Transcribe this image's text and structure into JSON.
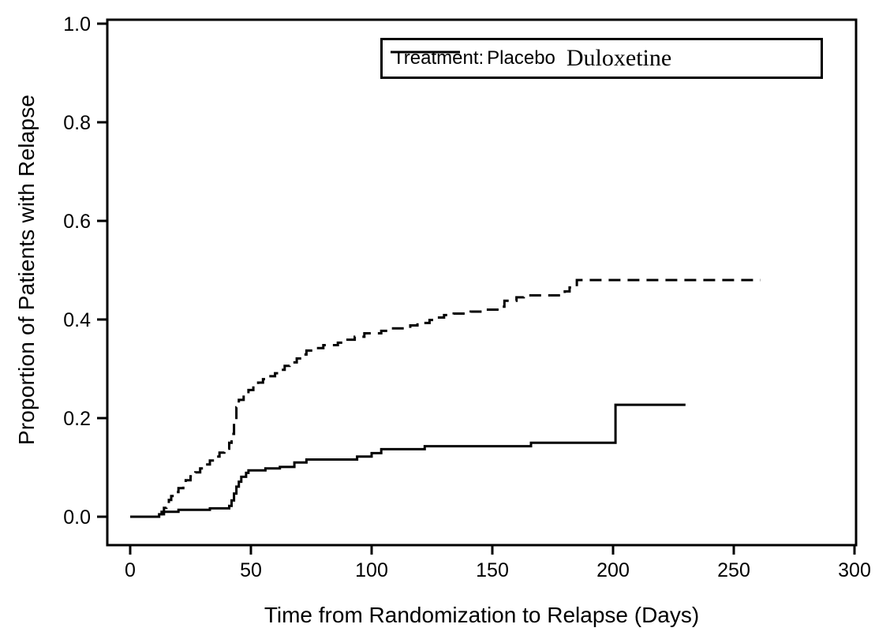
{
  "figure": {
    "background_color": "#ffffff",
    "line_color": "#000000"
  },
  "legend": {
    "title": "Treatment:",
    "entries": [
      {
        "label": "Placebo",
        "line_style": "dashed"
      },
      {
        "label": "Duloxetine",
        "line_style": "solid"
      }
    ]
  },
  "chart_data": {
    "type": "line",
    "subtype": "kaplan-meier-step",
    "title": "",
    "xlabel": "Time from Randomization to Relapse (Days)",
    "ylabel": "Proportion of Patients with Relapse",
    "xlim": [
      0,
      300
    ],
    "ylim": [
      0,
      1
    ],
    "grid": false,
    "legend_position": "top-right-inside",
    "x_ticks": [
      0,
      50,
      100,
      150,
      200,
      250,
      300
    ],
    "x_tick_labels": [
      "0",
      "50",
      "100",
      "150",
      "200",
      "250",
      "300"
    ],
    "y_ticks": [
      0.0,
      0.2,
      0.4,
      0.6,
      0.8,
      1.0
    ],
    "y_tick_labels": [
      "0.0",
      "0.2",
      "0.4",
      "0.6",
      "0.8",
      "1.0"
    ],
    "series": [
      {
        "name": "Placebo",
        "style": "dashed",
        "color": "#000000",
        "final_value": 0.48,
        "points": [
          [
            6,
            0
          ],
          [
            12,
            0.005
          ],
          [
            13,
            0.01
          ],
          [
            14,
            0.018
          ],
          [
            15,
            0.026
          ],
          [
            16,
            0.034
          ],
          [
            17,
            0.042
          ],
          [
            19,
            0.05
          ],
          [
            20,
            0.058
          ],
          [
            22,
            0.066
          ],
          [
            23,
            0.074
          ],
          [
            25,
            0.082
          ],
          [
            27,
            0.09
          ],
          [
            29,
            0.098
          ],
          [
            31,
            0.106
          ],
          [
            33,
            0.114
          ],
          [
            35,
            0.122
          ],
          [
            37,
            0.13
          ],
          [
            39,
            0.138
          ],
          [
            41,
            0.15
          ],
          [
            42,
            0.168
          ],
          [
            43,
            0.195
          ],
          [
            44,
            0.222
          ],
          [
            45,
            0.237
          ],
          [
            47,
            0.248
          ],
          [
            49,
            0.257
          ],
          [
            51,
            0.265
          ],
          [
            53,
            0.272
          ],
          [
            55,
            0.279
          ],
          [
            57,
            0.285
          ],
          [
            60,
            0.291
          ],
          [
            62,
            0.298
          ],
          [
            64,
            0.306
          ],
          [
            66,
            0.313
          ],
          [
            69,
            0.321
          ],
          [
            71,
            0.329
          ],
          [
            73,
            0.337
          ],
          [
            76,
            0.342
          ],
          [
            80,
            0.348
          ],
          [
            86,
            0.353
          ],
          [
            90,
            0.359
          ],
          [
            93,
            0.365
          ],
          [
            97,
            0.372
          ],
          [
            104,
            0.377
          ],
          [
            108,
            0.382
          ],
          [
            116,
            0.388
          ],
          [
            119,
            0.393
          ],
          [
            124,
            0.399
          ],
          [
            127,
            0.404
          ],
          [
            130,
            0.409
          ],
          [
            134,
            0.412
          ],
          [
            141,
            0.416
          ],
          [
            146,
            0.42
          ],
          [
            153,
            0.426
          ],
          [
            155,
            0.438
          ],
          [
            160,
            0.445
          ],
          [
            163,
            0.449
          ],
          [
            180,
            0.457
          ],
          [
            182,
            0.465
          ],
          [
            185,
            0.48
          ],
          [
            261,
            0.48
          ]
        ]
      },
      {
        "name": "Duloxetine",
        "style": "solid",
        "color": "#000000",
        "final_value": 0.227,
        "points": [
          [
            0,
            0
          ],
          [
            12,
            0.005
          ],
          [
            14,
            0.01
          ],
          [
            20,
            0.014
          ],
          [
            33,
            0.017
          ],
          [
            41,
            0.022
          ],
          [
            42,
            0.033
          ],
          [
            43,
            0.047
          ],
          [
            44,
            0.061
          ],
          [
            45,
            0.071
          ],
          [
            46,
            0.081
          ],
          [
            48,
            0.089
          ],
          [
            49,
            0.094
          ],
          [
            56,
            0.098
          ],
          [
            62,
            0.101
          ],
          [
            68,
            0.11
          ],
          [
            73,
            0.116
          ],
          [
            94,
            0.122
          ],
          [
            100,
            0.129
          ],
          [
            104,
            0.137
          ],
          [
            122,
            0.143
          ],
          [
            166,
            0.15
          ],
          [
            201,
            0.227
          ],
          [
            230,
            0.227
          ]
        ]
      }
    ]
  }
}
